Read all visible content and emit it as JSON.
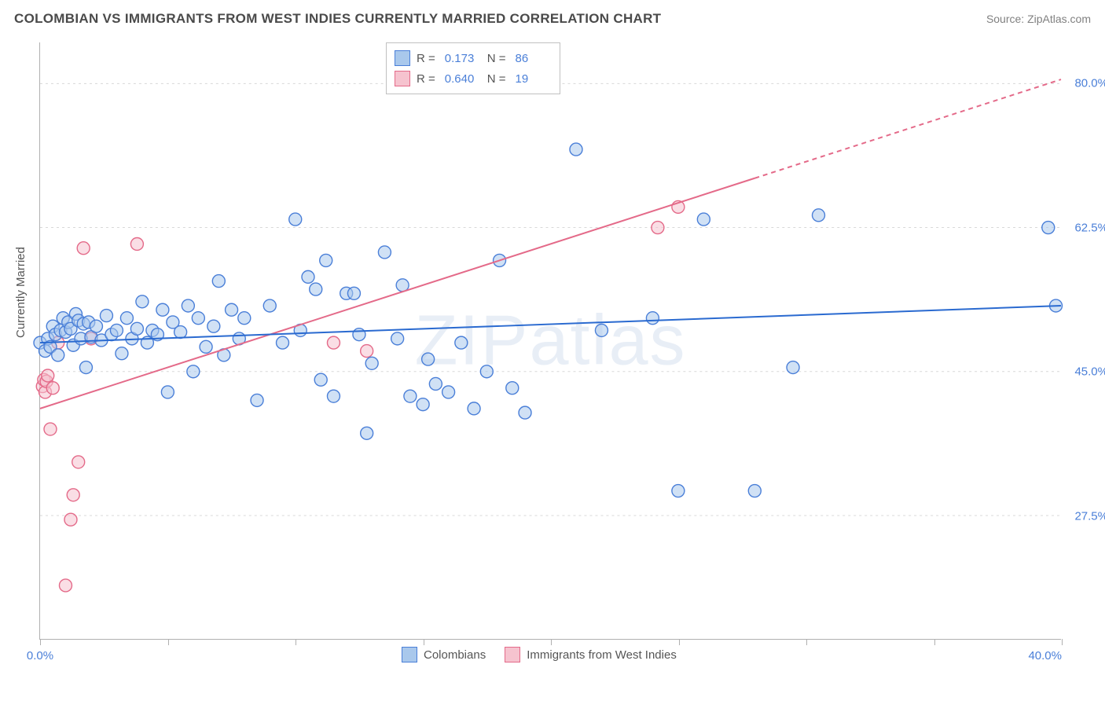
{
  "header": {
    "title": "COLOMBIAN VS IMMIGRANTS FROM WEST INDIES CURRENTLY MARRIED CORRELATION CHART",
    "source_prefix": "Source: ",
    "source_name": "ZipAtlas.com"
  },
  "watermark": "ZIPatlas",
  "axes": {
    "ylabel": "Currently Married",
    "xlim": [
      0,
      40
    ],
    "ylim": [
      12.5,
      85
    ],
    "xticks": [
      0,
      5,
      10,
      15,
      20,
      25,
      30,
      35,
      40
    ],
    "xtick_labels": {
      "0": "0.0%",
      "40": "40.0%"
    },
    "yticks": [
      27.5,
      45.0,
      62.5,
      80.0
    ],
    "ytick_labels": [
      "27.5%",
      "45.0%",
      "62.5%",
      "80.0%"
    ]
  },
  "styling": {
    "grid_color": "#d8d8d8",
    "axis_color": "#b0b0b0",
    "label_color": "#4a7fd8",
    "axis_text_color": "#555555",
    "background": "#ffffff",
    "watermark_color": "#e8eef6",
    "marker_radius": 8,
    "marker_stroke_width": 1.4,
    "line_width": 2,
    "dash_pattern": "6 5"
  },
  "legend_top": {
    "rows": [
      {
        "swatch": "blue",
        "r": "0.173",
        "n": "86"
      },
      {
        "swatch": "pink",
        "r": "0.640",
        "n": "19"
      }
    ],
    "r_label": "R  =",
    "n_label": "N  ="
  },
  "legend_bottom": {
    "items": [
      {
        "swatch": "blue",
        "label": "Colombians"
      },
      {
        "swatch": "pink",
        "label": "Immigrants from West Indies"
      }
    ]
  },
  "series": {
    "colombians": {
      "color_fill": "#a9c8ec",
      "color_stroke": "#4a7fd8",
      "fill_opacity": 0.55,
      "trend": {
        "x1": 0,
        "y1": 48.5,
        "x2": 40,
        "y2": 53.0,
        "solid_until_x": 40
      },
      "points": [
        [
          0.0,
          48.5
        ],
        [
          0.2,
          47.5
        ],
        [
          0.3,
          49.0
        ],
        [
          0.4,
          48.0
        ],
        [
          0.5,
          50.5
        ],
        [
          0.6,
          49.5
        ],
        [
          0.7,
          47.0
        ],
        [
          0.8,
          50.0
        ],
        [
          0.9,
          51.5
        ],
        [
          1.0,
          49.8
        ],
        [
          1.1,
          51.0
        ],
        [
          1.2,
          50.2
        ],
        [
          1.3,
          48.2
        ],
        [
          1.4,
          52.0
        ],
        [
          1.5,
          51.2
        ],
        [
          1.6,
          49.0
        ],
        [
          1.7,
          50.8
        ],
        [
          1.8,
          45.5
        ],
        [
          1.9,
          51.0
        ],
        [
          2.0,
          49.2
        ],
        [
          2.2,
          50.5
        ],
        [
          2.4,
          48.8
        ],
        [
          2.6,
          51.8
        ],
        [
          2.8,
          49.5
        ],
        [
          3.0,
          50.0
        ],
        [
          3.2,
          47.2
        ],
        [
          3.4,
          51.5
        ],
        [
          3.6,
          49.0
        ],
        [
          3.8,
          50.2
        ],
        [
          4.0,
          53.5
        ],
        [
          4.2,
          48.5
        ],
        [
          4.4,
          50.0
        ],
        [
          4.6,
          49.5
        ],
        [
          4.8,
          52.5
        ],
        [
          5.0,
          42.5
        ],
        [
          5.2,
          51.0
        ],
        [
          5.5,
          49.8
        ],
        [
          5.8,
          53.0
        ],
        [
          6.0,
          45.0
        ],
        [
          6.2,
          51.5
        ],
        [
          6.5,
          48.0
        ],
        [
          6.8,
          50.5
        ],
        [
          7.0,
          56.0
        ],
        [
          7.2,
          47.0
        ],
        [
          7.5,
          52.5
        ],
        [
          7.8,
          49.0
        ],
        [
          8.0,
          51.5
        ],
        [
          8.5,
          41.5
        ],
        [
          9.0,
          53.0
        ],
        [
          9.5,
          48.5
        ],
        [
          10.0,
          63.5
        ],
        [
          10.2,
          50.0
        ],
        [
          10.5,
          56.5
        ],
        [
          10.8,
          55.0
        ],
        [
          11.0,
          44.0
        ],
        [
          11.2,
          58.5
        ],
        [
          11.5,
          42.0
        ],
        [
          12.0,
          54.5
        ],
        [
          12.3,
          54.5
        ],
        [
          12.5,
          49.5
        ],
        [
          12.8,
          37.5
        ],
        [
          13.0,
          46.0
        ],
        [
          13.5,
          59.5
        ],
        [
          14.0,
          49.0
        ],
        [
          14.2,
          55.5
        ],
        [
          14.5,
          42.0
        ],
        [
          15.0,
          41.0
        ],
        [
          15.2,
          46.5
        ],
        [
          15.5,
          43.5
        ],
        [
          16.0,
          42.5
        ],
        [
          16.5,
          48.5
        ],
        [
          17.0,
          40.5
        ],
        [
          17.5,
          45.0
        ],
        [
          18.0,
          58.5
        ],
        [
          18.5,
          43.0
        ],
        [
          19.0,
          40.0
        ],
        [
          21.0,
          72.0
        ],
        [
          22.0,
          50.0
        ],
        [
          24.0,
          51.5
        ],
        [
          25.0,
          30.5
        ],
        [
          26.0,
          63.5
        ],
        [
          28.0,
          30.5
        ],
        [
          29.5,
          45.5
        ],
        [
          30.5,
          64.0
        ],
        [
          39.5,
          62.5
        ],
        [
          39.8,
          53.0
        ]
      ]
    },
    "west_indies": {
      "color_fill": "#f6c3cf",
      "color_stroke": "#e46a89",
      "fill_opacity": 0.55,
      "trend": {
        "x1": 0,
        "y1": 40.5,
        "x2": 40,
        "y2": 80.5,
        "solid_until_x": 28
      },
      "points": [
        [
          0.1,
          43.2
        ],
        [
          0.15,
          44.0
        ],
        [
          0.2,
          42.5
        ],
        [
          0.25,
          43.8
        ],
        [
          0.3,
          44.5
        ],
        [
          0.4,
          38.0
        ],
        [
          0.5,
          43.0
        ],
        [
          0.7,
          48.5
        ],
        [
          1.0,
          19.0
        ],
        [
          1.2,
          27.0
        ],
        [
          1.3,
          30.0
        ],
        [
          1.5,
          34.0
        ],
        [
          1.7,
          60.0
        ],
        [
          2.0,
          49.0
        ],
        [
          3.8,
          60.5
        ],
        [
          11.5,
          48.5
        ],
        [
          12.8,
          47.5
        ],
        [
          24.2,
          62.5
        ],
        [
          25.0,
          65.0
        ]
      ]
    }
  }
}
